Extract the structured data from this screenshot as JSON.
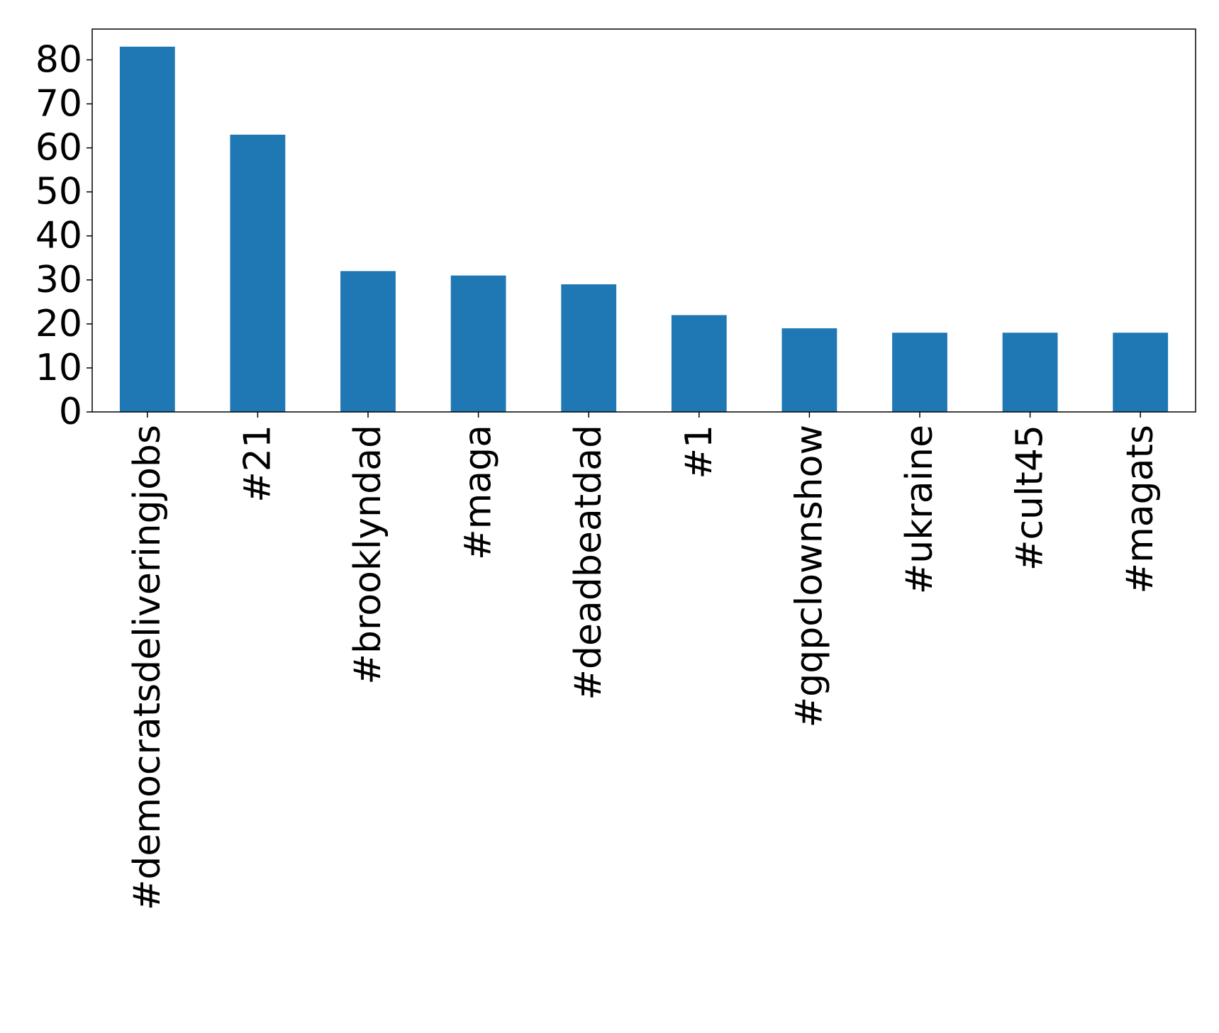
{
  "chart_data": {
    "type": "bar",
    "title": "",
    "xlabel": "",
    "ylabel": "",
    "categories": [
      "#democratsdeliveringjobs",
      "#21",
      "#brooklyndad",
      "#maga",
      "#deadbeatdad",
      "#1",
      "#gqpclownshow",
      "#ukraine",
      "#cult45",
      "#magats"
    ],
    "values": [
      83,
      63,
      32,
      31,
      29,
      22,
      19,
      18,
      18,
      18
    ],
    "ylim": [
      0,
      87
    ],
    "yticks": [
      0,
      10,
      20,
      30,
      40,
      50,
      60,
      70,
      80
    ],
    "grid": false,
    "legend": "none",
    "bar_color": "#1f77b4"
  }
}
